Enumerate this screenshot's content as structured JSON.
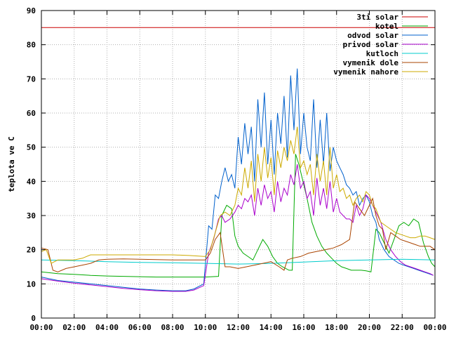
{
  "chart_data": {
    "type": "line",
    "title": "",
    "xlabel": "",
    "ylabel": "teplota ve C",
    "xlim": [
      0,
      24
    ],
    "ylim": [
      0,
      90
    ],
    "x_ticks": [
      "00:00",
      "02:00",
      "04:00",
      "06:00",
      "08:00",
      "10:00",
      "12:00",
      "14:00",
      "16:00",
      "18:00",
      "20:00",
      "22:00",
      "00:00"
    ],
    "y_ticks": [
      0,
      10,
      20,
      30,
      40,
      50,
      60,
      70,
      80,
      90
    ],
    "grid": true,
    "legend_position": "top-right",
    "series": [
      {
        "name": "3ti solar",
        "color": "#cc0000",
        "x": [
          0,
          24
        ],
        "y": [
          85,
          85
        ]
      },
      {
        "name": "kotel",
        "color": "#00aa00",
        "x": [
          0,
          1,
          2,
          3,
          4,
          5,
          6,
          7,
          8,
          9,
          10,
          10.8,
          11,
          11.3,
          11.6,
          11.8,
          12,
          12.3,
          12.6,
          12.9,
          13.2,
          13.5,
          13.8,
          14.1,
          14.4,
          14.7,
          14.9,
          15.1,
          15.3,
          15.5,
          15.7,
          15.9,
          16.2,
          16.5,
          16.8,
          17.1,
          17.4,
          17.7,
          18,
          18.3,
          18.6,
          18.9,
          19.2,
          19.5,
          19.8,
          20.1,
          20.4,
          20.6,
          20.9,
          21.2,
          21.5,
          21.8,
          22.1,
          22.4,
          22.7,
          23,
          23.3,
          23.6,
          23.8,
          24
        ],
        "y": [
          13.5,
          13,
          12.8,
          12.5,
          12.3,
          12.2,
          12.1,
          12,
          12,
          12,
          12,
          12.2,
          30,
          33,
          32,
          24,
          21,
          19,
          18,
          17,
          20,
          23,
          21,
          18,
          16,
          15,
          14.5,
          14,
          14,
          48,
          45,
          41,
          35,
          28,
          24,
          21,
          19,
          17.5,
          16,
          15,
          14.5,
          14,
          14,
          14,
          13.8,
          13.5,
          26,
          25,
          22,
          19,
          23,
          27,
          28,
          27,
          29,
          28,
          22,
          18,
          16,
          15
        ]
      },
      {
        "name": "odvod solar",
        "color": "#0060cc",
        "x": [
          0,
          1,
          2,
          3,
          4,
          5,
          6,
          7,
          8,
          8.8,
          9.3,
          9.9,
          10.2,
          10.4,
          10.6,
          10.8,
          11,
          11.2,
          11.4,
          11.6,
          11.8,
          12,
          12.2,
          12.4,
          12.6,
          12.8,
          13,
          13.2,
          13.4,
          13.6,
          13.8,
          14,
          14.2,
          14.4,
          14.6,
          14.8,
          15,
          15.2,
          15.4,
          15.6,
          15.8,
          16,
          16.2,
          16.4,
          16.6,
          16.8,
          17,
          17.2,
          17.4,
          17.6,
          17.8,
          18,
          18.2,
          18.4,
          18.6,
          18.8,
          19,
          19.2,
          19.4,
          19.6,
          19.8,
          20,
          20.2,
          20.4,
          20.6,
          20.9,
          21.2,
          21.5,
          21.8,
          22.1,
          22.4,
          22.7,
          23,
          23.3,
          23.6,
          23.9
        ],
        "y": [
          12,
          11,
          10.5,
          10,
          9.5,
          9,
          8.5,
          8.2,
          8,
          8,
          8.5,
          10,
          27,
          26,
          36,
          35,
          40,
          44,
          40,
          42,
          38,
          53,
          45,
          57,
          48,
          56,
          40,
          64,
          50,
          66,
          45,
          58,
          42,
          60,
          51,
          65,
          47,
          71,
          55,
          73,
          48,
          60,
          50,
          46,
          64,
          44,
          58,
          45,
          60,
          43,
          50,
          46,
          44,
          42,
          39,
          38,
          36,
          37,
          33,
          35,
          36,
          34,
          30,
          28,
          23,
          20,
          18,
          17,
          16,
          15.5,
          15,
          14.5,
          14,
          13.5,
          13,
          12.5
        ]
      },
      {
        "name": "privod solar",
        "color": "#aa00cc",
        "x": [
          0,
          1,
          2,
          3,
          4,
          5,
          6,
          7,
          8,
          8.8,
          9.3,
          9.9,
          10.2,
          10.5,
          10.8,
          11,
          11.2,
          11.5,
          11.8,
          12,
          12.2,
          12.4,
          12.6,
          12.8,
          13,
          13.2,
          13.4,
          13.6,
          13.8,
          14,
          14.2,
          14.4,
          14.6,
          14.8,
          15,
          15.2,
          15.4,
          15.6,
          15.8,
          16,
          16.2,
          16.4,
          16.6,
          16.8,
          17,
          17.2,
          17.4,
          17.6,
          17.8,
          18,
          18.2,
          18.4,
          18.6,
          18.8,
          19,
          19.2,
          19.4,
          19.6,
          19.8,
          20,
          20.2,
          20.4,
          20.7,
          21,
          21.3,
          21.6,
          21.9,
          22.2,
          22.5,
          22.8,
          23.1,
          23.4,
          23.7,
          23.9
        ],
        "y": [
          11.5,
          10.8,
          10.2,
          9.7,
          9.2,
          8.7,
          8.3,
          8,
          7.8,
          7.8,
          8.2,
          9.5,
          19,
          23,
          29,
          30,
          28,
          29,
          31,
          33,
          32,
          35,
          34,
          36,
          30,
          38,
          33,
          39,
          35,
          37,
          31,
          40,
          34,
          38,
          36,
          42,
          39,
          45,
          38,
          40,
          35,
          37,
          30,
          41,
          33,
          38,
          32,
          40,
          31,
          35,
          31,
          30,
          29,
          29,
          28,
          33,
          30,
          32,
          36,
          35,
          33,
          31,
          28,
          23,
          20,
          18,
          16.5,
          15.5,
          15,
          14.5,
          14,
          13.5,
          13,
          12.5
        ]
      },
      {
        "name": "kutloch",
        "color": "#00cccc",
        "x": [
          0,
          2,
          4,
          6,
          8,
          10,
          12,
          14,
          16,
          18,
          20,
          22,
          24
        ],
        "y": [
          17,
          16.8,
          16.5,
          16.3,
          16.2,
          16,
          15.8,
          16,
          16.4,
          16.8,
          17,
          17.2,
          17
        ]
      },
      {
        "name": "vymenik dole",
        "color": "#aa4400",
        "x": [
          0,
          0.4,
          0.7,
          1,
          1.5,
          2,
          2.5,
          3,
          3.5,
          4,
          5,
          6,
          7,
          8,
          9,
          10,
          10.3,
          10.6,
          10.9,
          11.2,
          11.5,
          12,
          12.5,
          13,
          13.5,
          14,
          14.5,
          14.8,
          15,
          15.3,
          15.8,
          16.3,
          16.8,
          17.3,
          17.8,
          18.3,
          18.8,
          19.1,
          19.4,
          19.7,
          20,
          20.2,
          20.4,
          20.6,
          20.8,
          21,
          21.3,
          21.6,
          21.9,
          22.2,
          22.5,
          22.8,
          23.1,
          23.4,
          23.7,
          24
        ],
        "y": [
          20.5,
          20,
          14,
          13.5,
          14.5,
          15,
          15.5,
          16,
          17,
          17.2,
          17.3,
          17.2,
          17.1,
          17,
          17,
          17,
          19,
          23,
          25,
          15,
          15,
          14.5,
          15,
          15.5,
          16,
          16.5,
          15,
          14,
          17,
          17.5,
          18,
          19,
          19.5,
          20,
          20.5,
          21.5,
          23,
          34,
          32,
          30,
          33,
          35,
          30,
          27,
          26,
          20,
          25,
          24,
          23,
          22.5,
          22,
          21.5,
          21,
          21,
          21,
          20
        ]
      },
      {
        "name": "vymenik nahore",
        "color": "#ccaa00",
        "x": [
          0,
          0.3,
          0.6,
          1,
          2,
          2.5,
          3,
          4,
          5,
          6,
          7,
          8,
          9,
          10,
          10.3,
          10.6,
          10.9,
          11.2,
          11.5,
          11.8,
          12,
          12.2,
          12.4,
          12.6,
          12.8,
          13,
          13.2,
          13.4,
          13.6,
          13.8,
          14,
          14.2,
          14.4,
          14.6,
          14.8,
          15,
          15.2,
          15.4,
          15.6,
          15.8,
          16,
          16.2,
          16.4,
          16.6,
          16.8,
          17,
          17.2,
          17.4,
          17.6,
          17.8,
          18,
          18.2,
          18.4,
          18.6,
          18.8,
          19,
          19.2,
          19.4,
          19.6,
          19.8,
          20,
          20.2,
          20.4,
          20.7,
          21,
          21.3,
          21.6,
          21.9,
          22.2,
          22.5,
          22.8,
          23.1,
          23.4,
          23.7,
          24
        ],
        "y": [
          19.5,
          20,
          16,
          17,
          17,
          17.5,
          18.5,
          18.5,
          18.5,
          18.5,
          18.5,
          18.5,
          18.3,
          18,
          20,
          25,
          30,
          31,
          30,
          33,
          38,
          36,
          44,
          38,
          46,
          34,
          48,
          40,
          50,
          41,
          47,
          36,
          49,
          44,
          50,
          46,
          52,
          48,
          56,
          44,
          46,
          42,
          45,
          36,
          48,
          40,
          46,
          36,
          50,
          38,
          42,
          37,
          38,
          35,
          36,
          33,
          35,
          36,
          34,
          37,
          36,
          33,
          32,
          28,
          27,
          26,
          25,
          24.5,
          24,
          23.5,
          23.5,
          24,
          24,
          23.5,
          23
        ]
      }
    ]
  }
}
